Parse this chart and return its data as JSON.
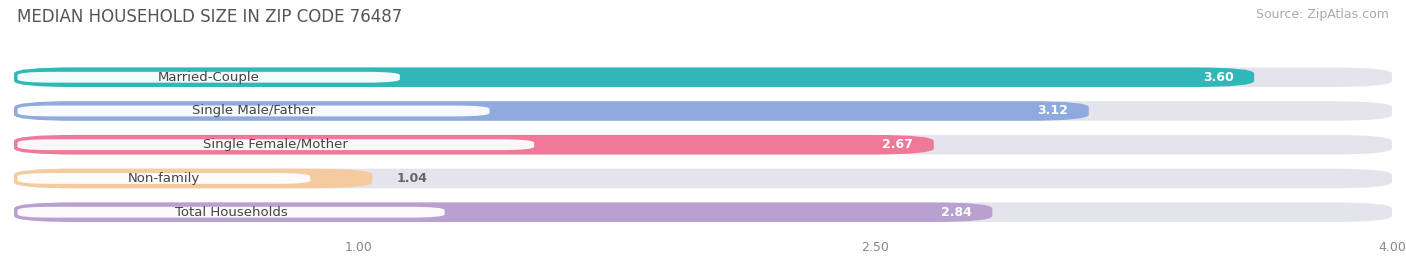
{
  "title": "MEDIAN HOUSEHOLD SIZE IN ZIP CODE 76487",
  "source": "Source: ZipAtlas.com",
  "categories": [
    "Married-Couple",
    "Single Male/Father",
    "Single Female/Mother",
    "Non-family",
    "Total Households"
  ],
  "values": [
    3.6,
    3.12,
    2.67,
    1.04,
    2.84
  ],
  "bar_colors": [
    "#30b8b8",
    "#8eaadf",
    "#f07898",
    "#f5ca9e",
    "#b8a0d0"
  ],
  "bar_bg_color": "#e4e4ec",
  "xlim_data": [
    0,
    4.0
  ],
  "xlim_display": [
    0,
    4.0
  ],
  "xticks": [
    1.0,
    2.5,
    4.0
  ],
  "title_fontsize": 12,
  "source_fontsize": 9,
  "label_fontsize": 9.5,
  "value_fontsize": 9,
  "tick_fontsize": 9,
  "background_color": "#ffffff",
  "bar_area_bg": "#f0f0f6"
}
